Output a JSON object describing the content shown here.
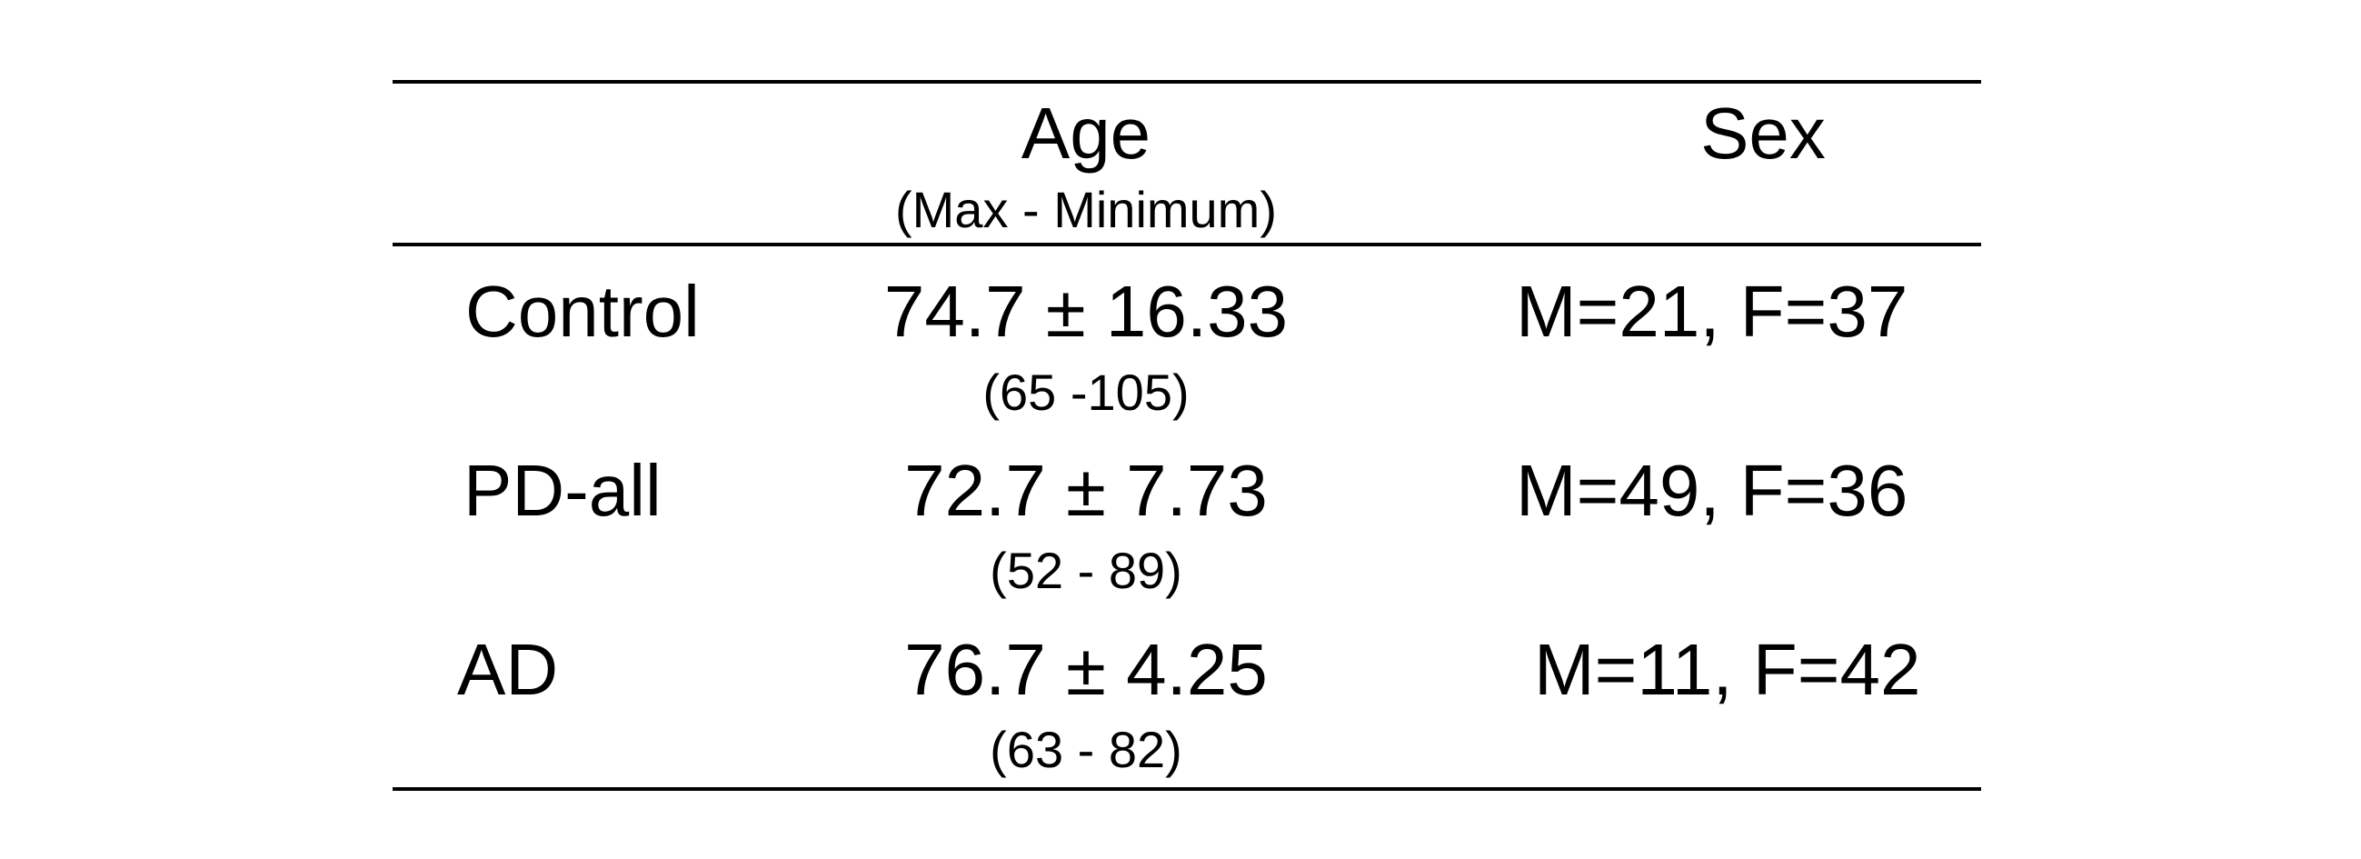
{
  "table": {
    "header": {
      "age_label": "Age",
      "age_sublabel": "(Max - Minimum)",
      "sex_label": "Sex"
    },
    "rows": [
      {
        "group": "Control",
        "age": "74.7 ± 16.33",
        "age_range": "(65 -105)",
        "sex": "M=21, F=37"
      },
      {
        "group": "PD-all",
        "age": "72.7 ± 7.73",
        "age_range": "(52 - 89)",
        "sex": "M=49, F=36"
      },
      {
        "group": "AD",
        "age": "76.7 ± 4.25",
        "age_range": "(63 - 82)",
        "sex": "M=11, F=42"
      }
    ]
  }
}
